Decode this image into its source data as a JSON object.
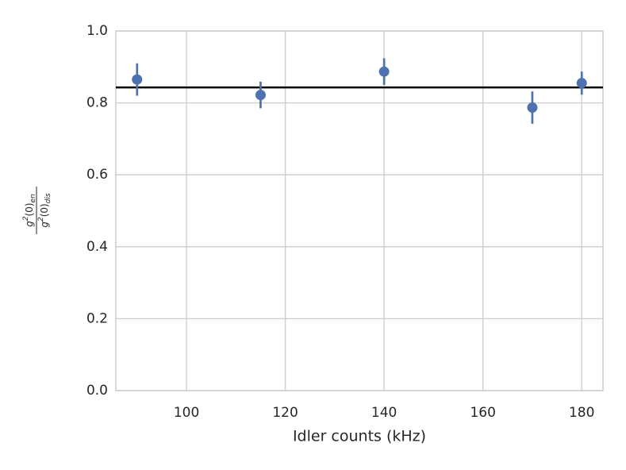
{
  "chart_data": {
    "type": "scatter",
    "xlabel": "Idler counts (kHz)",
    "ylabel": {
      "numerator": {
        "base": "g",
        "sup": "2",
        "mid": "(0)",
        "sub": "en"
      },
      "denominator": {
        "base": "g",
        "sup": "2",
        "mid": "(0)",
        "sub": "dis"
      }
    },
    "series": [
      {
        "color": "#4c72b0",
        "x": [
          90,
          115,
          140,
          170,
          180
        ],
        "values": [
          0.865,
          0.822,
          0.887,
          0.787,
          0.855
        ],
        "errors": [
          0.045,
          0.037,
          0.037,
          0.045,
          0.032
        ]
      }
    ],
    "hline": {
      "value": 0.843,
      "color": "#000000"
    },
    "xlim": [
      85.7,
      184.3
    ],
    "ylim": [
      0,
      1
    ],
    "xticks": [
      100,
      120,
      140,
      160,
      180
    ],
    "yticks": [
      {
        "value": 0,
        "label": "0.0"
      },
      {
        "value": 0.2,
        "label": "0.2"
      },
      {
        "value": 0.4,
        "label": "0.4"
      },
      {
        "value": 0.6,
        "label": "0.6"
      },
      {
        "value": 0.8,
        "label": "0.8"
      },
      {
        "value": 1,
        "label": "1.0"
      }
    ],
    "grid": true
  }
}
